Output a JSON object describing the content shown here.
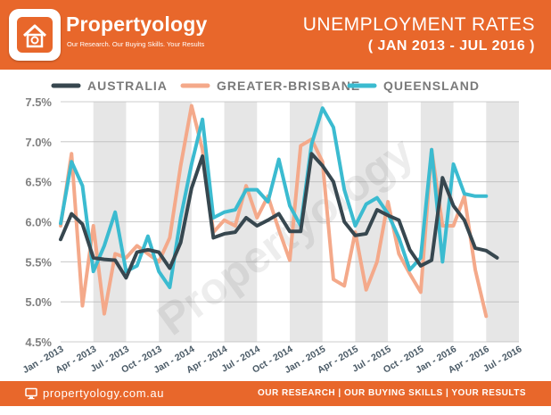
{
  "brand": {
    "name": "Propertyology",
    "tagline": "Our Research. Our Buying Skills. Your Results",
    "watermark": "Propertyology"
  },
  "title": {
    "main": "UNEMPLOYMENT RATES",
    "sub": "( JAN 2013 - JUL 2016 )"
  },
  "footer": {
    "url": "propertyology.com.au",
    "tagline": "OUR RESEARCH | OUR BUYING SKILLS | YOUR RESULTS"
  },
  "colors": {
    "brand_orange": "#e8672b",
    "australia": "#37474f",
    "greater_brisbane": "#f4a98a",
    "queensland": "#3bbbd0",
    "band": "#e6e6e6"
  },
  "icons": [
    "monitor-icon",
    "logo-house-icon"
  ],
  "chart_data": {
    "type": "line",
    "x": [
      "Jan - 2013",
      "Feb - 2013",
      "Mar - 2013",
      "Apr - 2013",
      "May - 2013",
      "Jun - 2013",
      "Jul - 2013",
      "Aug - 2013",
      "Sep - 2013",
      "Oct - 2013",
      "Nov - 2013",
      "Dec - 2013",
      "Jan - 2014",
      "Feb - 2014",
      "Mar - 2014",
      "Apr - 2014",
      "May - 2014",
      "Jun - 2014",
      "Jul - 2014",
      "Aug - 2014",
      "Sep - 2014",
      "Oct - 2014",
      "Nov - 2014",
      "Dec - 2014",
      "Jan - 2015",
      "Feb - 2015",
      "Mar - 2015",
      "Apr - 2015",
      "May - 2015",
      "Jun - 2015",
      "Jul - 2015",
      "Aug - 2015",
      "Sep - 2015",
      "Oct - 2015",
      "Nov - 2015",
      "Dec - 2015",
      "Jan - 2016",
      "Feb - 2016",
      "Mar - 2016",
      "Apr - 2016",
      "May - 2016",
      "Jun - 2016",
      "Jul - 2016"
    ],
    "x_tick_labels": [
      "Jan - 2013",
      "Apr - 2013",
      "Jul - 2013",
      "Oct - 2013",
      "Jan - 2014",
      "Apr - 2014",
      "Jul - 2014",
      "Oct - 2014",
      "Jan - 2015",
      "Apr - 2015",
      "Jul - 2015",
      "Oct - 2015",
      "Jan - 2016",
      "Apr - 2016",
      "Jul - 2016"
    ],
    "y_tick_labels": [
      "4.5%",
      "5.0%",
      "5.5%",
      "6.0%",
      "6.5%",
      "7.0%",
      "7.5%"
    ],
    "ylim": [
      4.5,
      7.5
    ],
    "grid": true,
    "legend": "top",
    "series": [
      {
        "name": "AUSTRALIA",
        "color": "#37474f",
        "values": [
          5.78,
          6.1,
          5.97,
          5.55,
          5.53,
          5.52,
          5.3,
          5.62,
          5.65,
          5.62,
          5.42,
          5.74,
          6.42,
          6.82,
          5.8,
          5.85,
          5.87,
          6.05,
          5.95,
          6.02,
          6.1,
          5.88,
          5.88,
          6.85,
          6.7,
          6.5,
          6.0,
          5.83,
          5.85,
          6.15,
          6.08,
          6.02,
          5.65,
          5.45,
          5.52,
          6.55,
          6.2,
          6.02,
          5.67,
          5.64,
          5.55,
          null,
          null
        ]
      },
      {
        "name": "GREATER-BRISBANE",
        "color": "#f4a98a",
        "values": [
          5.95,
          6.85,
          4.95,
          5.95,
          4.85,
          5.6,
          5.55,
          5.7,
          5.6,
          5.5,
          5.8,
          6.7,
          7.45,
          6.9,
          5.87,
          6.02,
          5.95,
          6.45,
          6.05,
          6.32,
          5.9,
          5.52,
          6.95,
          7.03,
          6.75,
          5.28,
          5.2,
          5.87,
          5.15,
          5.5,
          6.25,
          5.6,
          5.35,
          5.12,
          6.9,
          5.95,
          5.95,
          6.32,
          5.4,
          4.82,
          null,
          null,
          null
        ]
      },
      {
        "name": "QUEENSLAND",
        "color": "#3bbbd0",
        "values": [
          5.98,
          6.75,
          6.45,
          5.38,
          5.7,
          6.12,
          5.38,
          5.45,
          5.82,
          5.38,
          5.18,
          6.05,
          6.72,
          7.28,
          6.05,
          6.12,
          6.15,
          6.4,
          6.4,
          6.25,
          6.78,
          6.2,
          5.95,
          6.97,
          7.42,
          7.18,
          6.4,
          5.95,
          6.22,
          6.3,
          6.1,
          5.8,
          5.4,
          5.55,
          6.9,
          5.5,
          6.72,
          6.35,
          6.32,
          6.32,
          null,
          null,
          null
        ]
      }
    ]
  }
}
